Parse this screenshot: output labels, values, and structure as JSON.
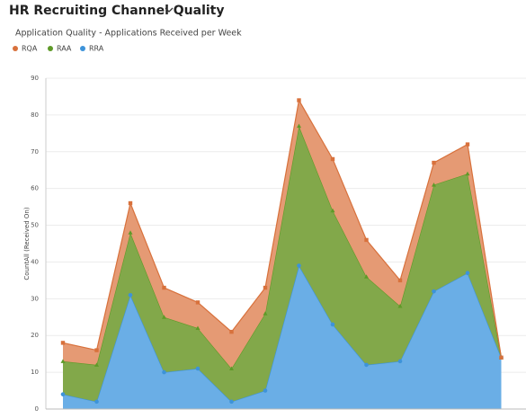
{
  "title": "HR Recruiting Channel Quality",
  "chart_data": {
    "type": "area",
    "stacked": true,
    "title": "Application Quality - Applications Received per Week",
    "y_label": "CountAll (Received On)",
    "categories": [
      null,
      null,
      null,
      null,
      null,
      null,
      null,
      null,
      null,
      null,
      null,
      null,
      null,
      null
    ],
    "series": [
      {
        "name": "RRA",
        "color": "#3d93d9",
        "fill": "#6aaee6",
        "values": [
          4,
          2,
          31,
          10,
          11,
          2,
          5,
          39,
          23,
          12,
          13,
          32,
          37,
          14
        ]
      },
      {
        "name": "RAA",
        "color": "#5e9a28",
        "fill": "#82a84a",
        "values": [
          9,
          10,
          17,
          15,
          11,
          9,
          21,
          38,
          31,
          24,
          15,
          29,
          27,
          0
        ]
      },
      {
        "name": "RQA",
        "color": "#d8713c",
        "fill": "#e59a74",
        "values": [
          5,
          4,
          8,
          8,
          7,
          10,
          7,
          7,
          14,
          10,
          7,
          6,
          8,
          0
        ]
      }
    ],
    "legend": "top-left",
    "ylim": [
      0,
      90
    ],
    "yticks": [
      0,
      10,
      20,
      30,
      40,
      50,
      60,
      70,
      80,
      90
    ],
    "grid": true
  }
}
